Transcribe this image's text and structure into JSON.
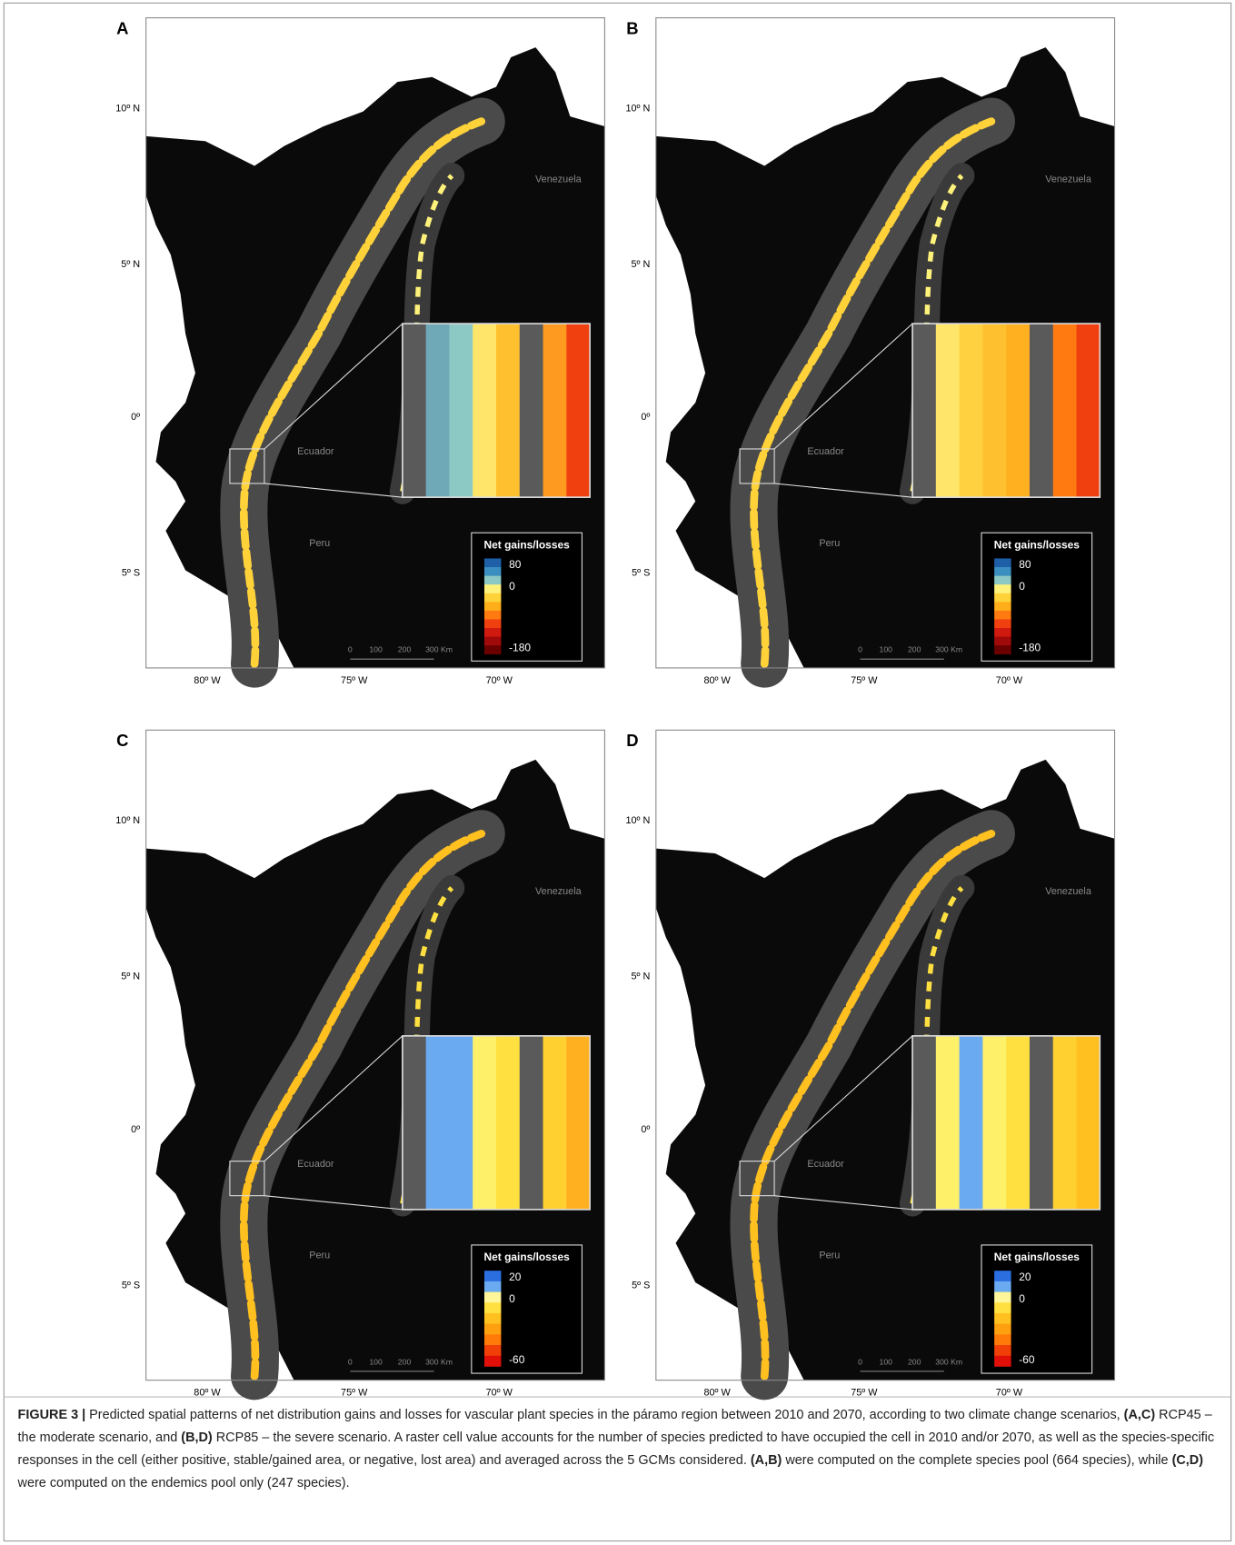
{
  "figure": {
    "panels": [
      {
        "letter": "A",
        "legend": {
          "title": "Net gains/losses",
          "max": 80,
          "zero": 0,
          "min": -180,
          "colors": [
            "#1f5fa8",
            "#3a8fc0",
            "#8cc8c4",
            "#fff27a",
            "#ffd23a",
            "#ffae1a",
            "#ff7a10",
            "#f04010",
            "#d01a10",
            "#a00a0a",
            "#6a0000"
          ]
        },
        "inset_colors": [
          "#5a5a5a",
          "#6fa9b8",
          "#8cc8c4",
          "#ffe66a",
          "#ffc030",
          "#5a5a5a",
          "#ff9a20",
          "#f04010"
        ]
      },
      {
        "letter": "B",
        "legend": {
          "title": "Net gains/losses",
          "max": 80,
          "zero": 0,
          "min": -180,
          "colors": [
            "#1f5fa8",
            "#3a8fc0",
            "#8cc8c4",
            "#fff27a",
            "#ffd23a",
            "#ffae1a",
            "#ff7a10",
            "#f04010",
            "#d01a10",
            "#a00a0a",
            "#6a0000"
          ]
        },
        "inset_colors": [
          "#5a5a5a",
          "#ffe66a",
          "#ffd040",
          "#ffc030",
          "#ffb020",
          "#5a5a5a",
          "#ff7a10",
          "#f04010"
        ]
      },
      {
        "letter": "C",
        "legend": {
          "title": "Net gains/losses",
          "max": 20,
          "zero": 0,
          "min": -60,
          "colors": [
            "#2a6ee0",
            "#6aaaf0",
            "#fff59a",
            "#ffe040",
            "#ffc020",
            "#ffa010",
            "#ff7a08",
            "#f04008",
            "#e01008"
          ]
        },
        "inset_colors": [
          "#5a5a5a",
          "#6aaaf0",
          "#6aaaf0",
          "#fff06a",
          "#ffe040",
          "#5a5a5a",
          "#ffd030",
          "#ffb020"
        ]
      },
      {
        "letter": "D",
        "legend": {
          "title": "Net gains/losses",
          "max": 20,
          "zero": 0,
          "min": -60,
          "colors": [
            "#2a6ee0",
            "#6aaaf0",
            "#fff59a",
            "#ffe040",
            "#ffc020",
            "#ffa010",
            "#ff7a08",
            "#f04008",
            "#e01008"
          ]
        },
        "inset_colors": [
          "#5a5a5a",
          "#fff06a",
          "#6aaaf0",
          "#fff06a",
          "#ffe040",
          "#5a5a5a",
          "#ffd030",
          "#ffc020"
        ]
      }
    ],
    "lat_labels": [
      "10º N",
      "5º N",
      "0º",
      "5º S"
    ],
    "lon_labels": [
      "80º W",
      "75º W",
      "70º W"
    ],
    "countries": [
      "Venezuela",
      "Ecuador",
      "Peru"
    ],
    "scale_labels": [
      "0",
      "100",
      "200",
      "300 Km"
    ],
    "caption": [
      {
        "text": "FIGURE 3 |",
        "bold": true
      },
      {
        "text": " Predicted spatial patterns of net distribution gains and losses for vascular plant species in the páramo region between 2010 and 2070, according to two climate change scenarios, ",
        "bold": false
      },
      {
        "text": "(A,C)",
        "bold": true
      },
      {
        "text": " RCP45 – the moderate scenario, and ",
        "bold": false
      },
      {
        "text": "(B,D)",
        "bold": true
      },
      {
        "text": " RCP85 – the severe scenario. A raster cell value accounts for the number of species predicted to have occupied the cell in 2010 and/or 2070, as well as the species-specific responses in the cell (either positive, stable/gained area, or negative, lost area) and averaged across the 5 GCMs considered. ",
        "bold": false
      },
      {
        "text": "(A,B)",
        "bold": true
      },
      {
        "text": " were computed on the complete species pool (664 species), while ",
        "bold": false
      },
      {
        "text": "(C,D)",
        "bold": true
      },
      {
        "text": " were computed on the endemics pool only (247 species).",
        "bold": false
      }
    ]
  }
}
